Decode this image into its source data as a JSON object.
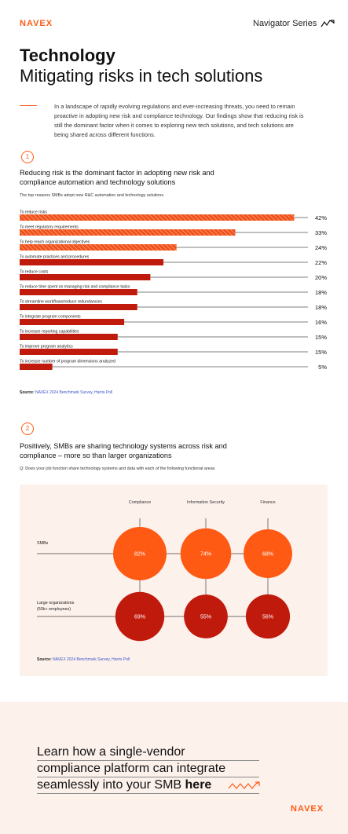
{
  "header": {
    "logo": "NAVEX",
    "series": "Navigator Series"
  },
  "hero": {
    "title": "Technology",
    "subtitle": "Mitigating risks in tech solutions",
    "intro": "In a landscape of rapidly evolving regulations and ever-increasing threats, you need to remain proactive in adopting new risk and compliance technology. Our findings show that reducing risk is still the dominant factor when it comes to exploring new tech solutions, and tech solutions are being shared across different functions."
  },
  "section1": {
    "number": "1",
    "heading": "Reducing risk is the dominant factor in adopting new risk and compliance automation and technology solutions",
    "subheading": "The top reasons SMBs adopt new R&C automation and technology solutions",
    "source_label": "Source:",
    "source_text": "NAVEX 2024 Benchmark Survey, Harris Poll"
  },
  "section2": {
    "number": "2",
    "heading": "Positively, SMBs are sharing technology systems across risk and compliance – more so than larger organizations",
    "question": "Q: Does your job function share technology systems and data with each of the following functional areas",
    "source_label": "Source:",
    "source_text": "NAVEX 2024 Benchmark Survey, Harris Poll"
  },
  "cta": {
    "line1": "Learn how a single-vendor",
    "line2": "compliance platform can integrate",
    "line3_prefix": "seamlessly into your SMB ",
    "line3_link": "here"
  },
  "footer": {
    "logo": "NAVEX"
  },
  "colors": {
    "orange": "#ff5a14",
    "dark_red": "#c01a0c",
    "hatched": "#f0521a",
    "panel": "#fdf1ec"
  },
  "chart_data": [
    {
      "type": "bar",
      "orientation": "horizontal",
      "categories": [
        "To reduce risks",
        "To meet regulatory requirements",
        "To help reach organizational objectives",
        "To automate practices and procedures",
        "To reduce costs",
        "To reduce time spent on managing risk and compliance tasks",
        "To streamline workflows/reduce redundancies",
        "To integrate program components",
        "To increase reporting capabilities",
        "To improve program analytics",
        "To increase number of program dimensions analyzed"
      ],
      "values": [
        42,
        33,
        24,
        22,
        20,
        18,
        18,
        16,
        15,
        15,
        5
      ],
      "value_labels": [
        "42%",
        "33%",
        "24%",
        "22%",
        "20%",
        "18%",
        "18%",
        "16%",
        "15%",
        "15%",
        "5%"
      ],
      "highlighted": [
        true,
        true,
        true,
        false,
        false,
        false,
        false,
        false,
        false,
        false,
        false
      ],
      "xlim": [
        0,
        50
      ]
    },
    {
      "type": "bubble",
      "columns": [
        "Compliance",
        "Information Security",
        "Finance"
      ],
      "rows": [
        "SMBs",
        "Large organizations (50k+ employees)"
      ],
      "row_labels_lines": [
        [
          "SMBs"
        ],
        [
          "Large organizations",
          "(50k+ employees)"
        ]
      ],
      "values": [
        [
          82,
          74,
          68
        ],
        [
          69,
          55,
          56
        ]
      ],
      "value_labels": [
        [
          "82%",
          "74%",
          "68%"
        ],
        [
          "69%",
          "55%",
          "56%"
        ]
      ],
      "row_colors": [
        "#ff5a14",
        "#c01a0c"
      ]
    }
  ]
}
